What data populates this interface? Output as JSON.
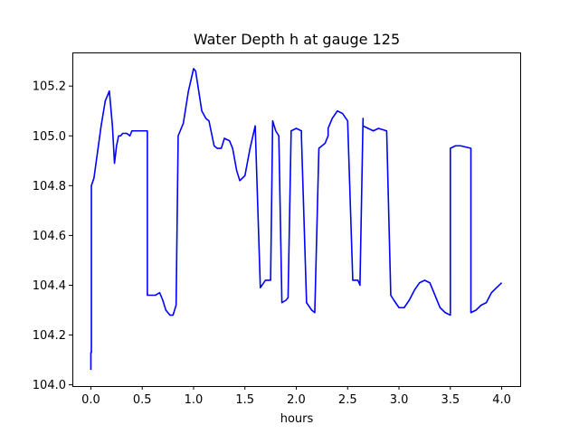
{
  "chart_data": {
    "type": "line",
    "title": "Water Depth h at gauge 125",
    "xlabel": "hours",
    "ylabel": "",
    "xlim": [
      -0.18,
      4.18
    ],
    "ylim": [
      103.995,
      105.335
    ],
    "xticks": [
      0.0,
      0.5,
      1.0,
      1.5,
      2.0,
      2.5,
      3.0,
      3.5,
      4.0
    ],
    "xtick_labels": [
      "0.0",
      "0.5",
      "1.0",
      "1.5",
      "2.0",
      "2.5",
      "3.0",
      "3.5",
      "4.0"
    ],
    "yticks": [
      104.0,
      104.2,
      104.4,
      104.6,
      104.8,
      105.0,
      105.2
    ],
    "ytick_labels": [
      "104.0",
      "104.2",
      "104.4",
      "104.6",
      "104.8",
      "105.0",
      "105.2"
    ],
    "grid": false,
    "legend": "none",
    "series": [
      {
        "color": "#0000ff",
        "x": [
          0.0,
          0.0,
          0.005,
          0.005,
          0.03,
          0.06,
          0.1,
          0.14,
          0.18,
          0.21,
          0.23,
          0.25,
          0.27,
          0.29,
          0.31,
          0.35,
          0.38,
          0.4,
          0.45,
          0.5,
          0.54,
          0.55,
          0.55,
          0.6,
          0.63,
          0.67,
          0.7,
          0.73,
          0.77,
          0.8,
          0.83,
          0.85,
          0.85,
          0.9,
          0.95,
          1.0,
          1.02,
          1.05,
          1.08,
          1.12,
          1.15,
          1.18,
          1.2,
          1.23,
          1.27,
          1.3,
          1.35,
          1.38,
          1.42,
          1.45,
          1.5,
          1.55,
          1.6,
          1.65,
          1.7,
          1.75,
          1.77,
          1.77,
          1.8,
          1.83,
          1.86,
          1.86,
          1.9,
          1.92,
          1.92,
          1.95,
          2.0,
          2.05,
          2.05,
          2.1,
          2.15,
          2.18,
          2.18,
          2.22,
          2.28,
          2.31,
          2.31,
          2.35,
          2.4,
          2.45,
          2.5,
          2.55,
          2.6,
          2.62,
          2.62,
          2.65,
          2.65,
          2.7,
          2.75,
          2.8,
          2.88,
          2.92,
          2.92,
          2.95,
          3.0,
          3.05,
          3.1,
          3.15,
          3.2,
          3.25,
          3.3,
          3.35,
          3.4,
          3.45,
          3.5,
          3.5,
          3.55,
          3.6,
          3.7,
          3.7,
          3.75,
          3.8,
          3.85,
          3.9,
          3.95,
          4.0
        ],
        "y": [
          104.06,
          104.13,
          104.13,
          104.8,
          104.83,
          104.92,
          105.04,
          105.14,
          105.18,
          105.04,
          104.89,
          104.96,
          105.0,
          105.0,
          105.01,
          105.01,
          105.0,
          105.02,
          105.02,
          105.02,
          105.02,
          105.02,
          104.36,
          104.36,
          104.36,
          104.37,
          104.34,
          104.3,
          104.28,
          104.28,
          104.32,
          105.0,
          105.0,
          105.05,
          105.18,
          105.27,
          105.26,
          105.18,
          105.1,
          105.07,
          105.06,
          105.0,
          104.96,
          104.95,
          104.95,
          104.99,
          104.98,
          104.95,
          104.86,
          104.82,
          104.84,
          104.95,
          105.04,
          104.39,
          104.42,
          104.42,
          105.06,
          105.06,
          105.02,
          105.0,
          104.33,
          104.33,
          104.34,
          104.35,
          104.35,
          105.02,
          105.03,
          105.02,
          105.0,
          104.33,
          104.3,
          104.29,
          104.29,
          104.95,
          104.97,
          105.0,
          105.03,
          105.07,
          105.1,
          105.09,
          105.06,
          104.42,
          104.42,
          104.4,
          104.4,
          105.07,
          105.04,
          105.03,
          105.02,
          105.03,
          105.02,
          104.36,
          104.36,
          104.34,
          104.31,
          104.31,
          104.34,
          104.38,
          104.41,
          104.42,
          104.41,
          104.36,
          104.31,
          104.29,
          104.28,
          104.95,
          104.96,
          104.96,
          104.95,
          104.29,
          104.3,
          104.32,
          104.33,
          104.37,
          104.39,
          104.41
        ]
      }
    ]
  }
}
